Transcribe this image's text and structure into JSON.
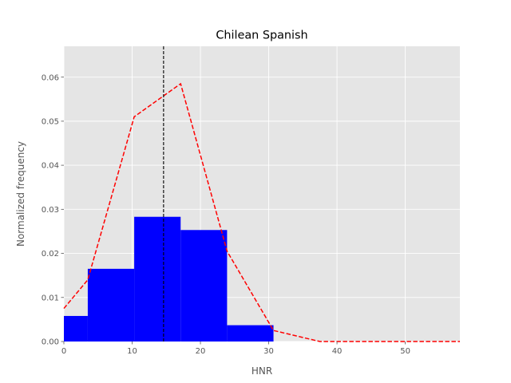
{
  "chart_data": {
    "type": "bar",
    "title": "Chilean Spanish",
    "xlabel": "HNR",
    "ylabel": "Normalized frequency",
    "xlim": [
      0,
      58
    ],
    "ylim": [
      0,
      0.067
    ],
    "grid": true,
    "x_ticks": [
      "0",
      "10",
      "20",
      "30",
      "40",
      "50"
    ],
    "y_ticks": [
      "0.00",
      "0.01",
      "0.02",
      "0.03",
      "0.04",
      "0.05",
      "0.06"
    ],
    "x_tick_values": [
      0,
      10,
      20,
      30,
      40,
      50
    ],
    "y_tick_values": [
      0,
      0.01,
      0.02,
      0.03,
      0.04,
      0.05,
      0.06
    ],
    "histogram": {
      "color": "#0000ff",
      "bins": [
        {
          "x0": 0.0,
          "x1": 3.5,
          "value": 0.0058
        },
        {
          "x0": 3.5,
          "x1": 10.3,
          "value": 0.0165
        },
        {
          "x0": 10.3,
          "x1": 17.1,
          "value": 0.0283
        },
        {
          "x0": 17.1,
          "x1": 23.9,
          "value": 0.0253
        },
        {
          "x0": 23.9,
          "x1": 30.7,
          "value": 0.0037
        }
      ]
    },
    "density_curve": {
      "color": "#ff0000",
      "style": "dashed",
      "x": [
        0.0,
        3.5,
        10.3,
        17.1,
        23.9,
        30.7,
        37.5,
        58.0
      ],
      "y": [
        0.0075,
        0.014,
        0.051,
        0.0585,
        0.0205,
        0.0025,
        0.0,
        0.0
      ]
    },
    "mean_line": {
      "color": "#000000",
      "style": "dashed",
      "x": 14.6
    }
  }
}
